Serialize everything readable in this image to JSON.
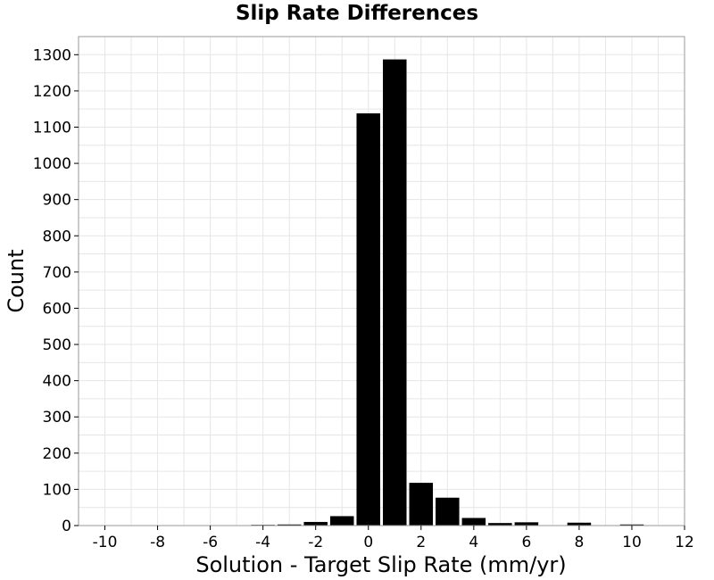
{
  "chart_data": {
    "type": "bar",
    "title": "Slip Rate Differences",
    "xlabel": "Solution - Target Slip Rate (mm/yr)",
    "ylabel": "Count",
    "xlim": [
      -11,
      12
    ],
    "ylim": [
      0,
      1350
    ],
    "bin_width": 1,
    "bin_centers": [
      -5,
      -4,
      -3,
      -2,
      -1,
      0,
      1,
      2,
      3,
      4,
      5,
      6,
      7,
      8,
      9,
      10
    ],
    "values": [
      0,
      2,
      3,
      10,
      26,
      1138,
      1287,
      118,
      77,
      21,
      7,
      9,
      0,
      8,
      0,
      3
    ],
    "x_ticks": [
      "-10",
      "-8",
      "-6",
      "-4",
      "-2",
      "0",
      "2",
      "4",
      "6",
      "8",
      "10",
      "12"
    ],
    "y_ticks": [
      "0",
      "100",
      "200",
      "300",
      "400",
      "500",
      "600",
      "700",
      "800",
      "900",
      "1000",
      "1100",
      "1200",
      "1300"
    ],
    "grid": true,
    "bar_color": "#000000",
    "grid_color": "#e6e6e6"
  }
}
